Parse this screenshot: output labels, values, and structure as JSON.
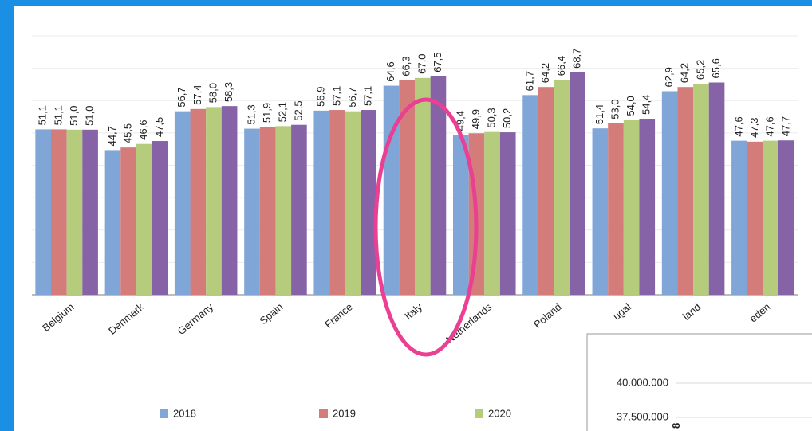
{
  "chart_data": {
    "type": "bar",
    "categories": [
      "Belgium",
      "Denmark",
      "Germany",
      "Spain",
      "France",
      "Italy",
      "Netherlands",
      "Poland",
      "ugal",
      "land",
      "eden"
    ],
    "series": [
      {
        "name": "2018",
        "color": "#7fa6d7",
        "values": [
          51.1,
          44.7,
          56.7,
          51.3,
          56.9,
          64.6,
          49.4,
          61.7,
          51.4,
          62.9,
          47.6
        ],
        "value_labels": [
          "51,1",
          "44,7",
          "56,7",
          "51,3",
          "56,9",
          "64,6",
          "49,4",
          "61,7",
          "51,4",
          "62,9",
          "47,6"
        ]
      },
      {
        "name": "2019",
        "color": "#d47c7a",
        "values": [
          51.1,
          45.5,
          57.4,
          51.9,
          57.1,
          66.3,
          49.9,
          64.2,
          53.0,
          64.2,
          47.3
        ],
        "value_labels": [
          "51,1",
          "45,5",
          "57,4",
          "51,9",
          "57,1",
          "66,3",
          "49,9",
          "64,2",
          "53,0",
          "64,2",
          "47,3"
        ]
      },
      {
        "name": "2020",
        "color": "#b4cc7c",
        "values": [
          51.0,
          46.6,
          58.0,
          52.1,
          56.7,
          67.0,
          50.3,
          66.4,
          54.0,
          65.2,
          47.6
        ],
        "value_labels": [
          "51,0",
          "46,6",
          "58,0",
          "52,1",
          "56,7",
          "67,0",
          "50,3",
          "66,4",
          "54,0",
          "65,2",
          "47,6"
        ]
      },
      {
        "color": "#8563a6",
        "values": [
          51.0,
          47.5,
          58.3,
          52.5,
          57.1,
          67.5,
          50.2,
          68.7,
          54.4,
          65.6,
          47.7
        ],
        "value_labels": [
          "51,0",
          "47,5",
          "58,3",
          "52,5",
          "57,1",
          "67,5",
          "50,2",
          "68,7",
          "54,4",
          "65,6",
          "47,7"
        ]
      }
    ],
    "ylim": [
      0,
      80
    ],
    "yticks": [
      0,
      10,
      20,
      30,
      40,
      50,
      60,
      70,
      80
    ],
    "grid": true
  },
  "overlay": {
    "yticks": [
      {
        "value": 40000000,
        "label": "40.000.000"
      },
      {
        "value": 37500000,
        "label": "37.500.000"
      }
    ],
    "annotation": "8"
  }
}
